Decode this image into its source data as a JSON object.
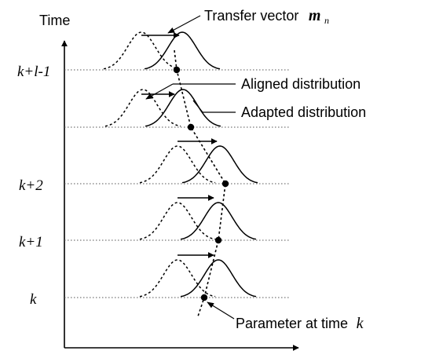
{
  "axis": {
    "y_title": "Time"
  },
  "time_labels": {
    "k_l_1": "k+l-1",
    "k_2": "k+2",
    "k_1": "k+1",
    "k": "k"
  },
  "callouts": {
    "transfer_vector_text": "Transfer vector",
    "transfer_vector_symbol": "m",
    "transfer_vector_subscript": "n",
    "aligned": "Aligned distribution",
    "adapted": "Adapted distribution",
    "parameter_text": "Parameter at time",
    "parameter_k": "k"
  },
  "colors": {
    "ink": "#000000",
    "grid": "#555555",
    "background": "#ffffff"
  }
}
